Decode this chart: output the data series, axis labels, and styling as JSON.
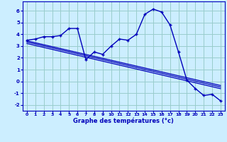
{
  "title": "Graphe des températures (°c)",
  "bg_color": "#cceeff",
  "grid_color": "#99cccc",
  "line_color": "#0000bb",
  "xlim": [
    -0.5,
    23.5
  ],
  "ylim": [
    -2.5,
    6.8
  ],
  "yticks": [
    -2,
    -1,
    0,
    1,
    2,
    3,
    4,
    5,
    6
  ],
  "xticks": [
    0,
    1,
    2,
    3,
    4,
    5,
    6,
    7,
    8,
    9,
    10,
    11,
    12,
    13,
    14,
    15,
    16,
    17,
    18,
    19,
    20,
    21,
    22,
    23
  ],
  "temp_data": [
    3.5,
    3.6,
    3.8,
    3.8,
    3.9,
    4.5,
    4.5,
    1.85,
    2.5,
    2.3,
    3.0,
    3.6,
    3.5,
    4.0,
    5.7,
    6.15,
    5.9,
    4.8,
    2.5,
    0.1,
    -0.6,
    -1.2,
    -1.1,
    -1.65
  ],
  "trend_lines": [
    [
      3.5,
      3.4,
      -0.3
    ],
    [
      3.35,
      3.25,
      -0.45
    ],
    [
      3.2,
      3.1,
      -0.6
    ]
  ]
}
